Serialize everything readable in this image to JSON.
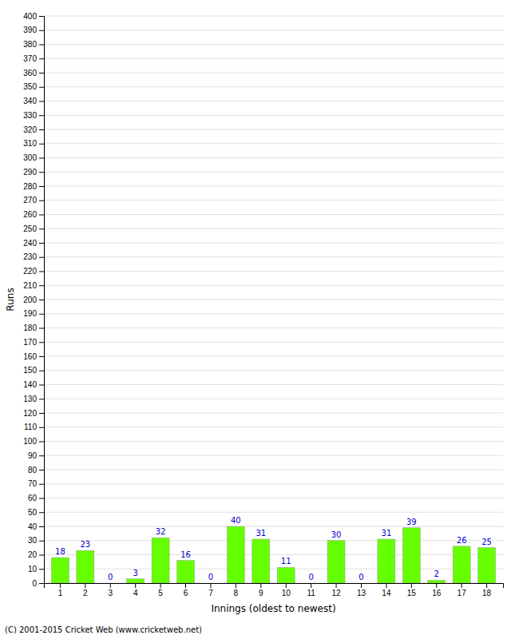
{
  "chart_data": {
    "type": "bar",
    "categories": [
      1,
      2,
      3,
      4,
      5,
      6,
      7,
      8,
      9,
      10,
      11,
      12,
      13,
      14,
      15,
      16,
      17,
      18
    ],
    "values": [
      18,
      23,
      0,
      3,
      32,
      16,
      0,
      40,
      31,
      11,
      0,
      30,
      0,
      31,
      39,
      2,
      26,
      25
    ],
    "color": "#66ff00",
    "x_label": "Innings (oldest to newest)",
    "y_label": "Runs",
    "ylim": [
      0,
      400
    ],
    "yticks": [
      0,
      10,
      20,
      30,
      40,
      50,
      60,
      70,
      80,
      90,
      100,
      110,
      120,
      130,
      140,
      150,
      160,
      170,
      180,
      190,
      200,
      210,
      220,
      230,
      240,
      250,
      260,
      270,
      280,
      290,
      300,
      310,
      320,
      330,
      340,
      350,
      360,
      370,
      380,
      390,
      400
    ],
    "grid": true,
    "data_labels": true,
    "annotations": [
      "(C) 2001-2015 Cricket Web (www.cricketweb.net)"
    ]
  }
}
